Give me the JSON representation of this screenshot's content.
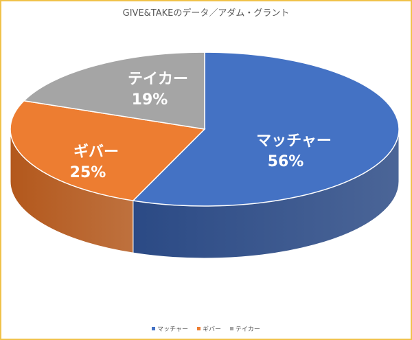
{
  "chart_data": {
    "type": "pie",
    "title": "GIVE&TAKEのデータ／アダム・グラント",
    "categories": [
      "マッチャー",
      "ギバー",
      "テイカー"
    ],
    "values": [
      56,
      25,
      19
    ],
    "labels": [
      "56%",
      "25%",
      "19%"
    ],
    "colors": [
      "#4472c4",
      "#ed7d31",
      "#a5a5a5"
    ],
    "side_colors": [
      "#2b4a85",
      "#b3581c",
      "#7a7a7a"
    ],
    "legend_position": "bottom",
    "style": "3d"
  }
}
